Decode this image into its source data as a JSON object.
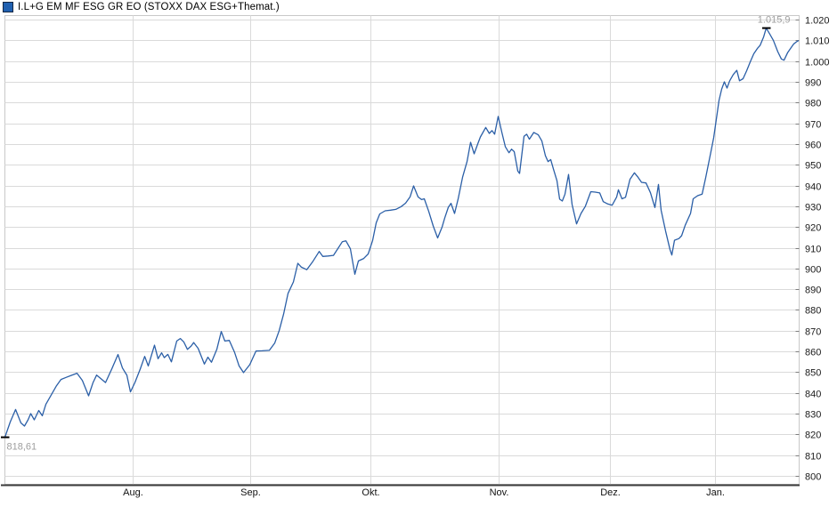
{
  "header": {
    "title": "I.L+G EM MF ESG GR EO (STOXX DAX ESG+Themat.)"
  },
  "chart_data": {
    "type": "line",
    "title": "I.L+G EM MF ESG GR EO (STOXX DAX ESG+Themat.)",
    "grid": true,
    "legend_position": "top-left",
    "colors": {
      "line": "#2b5fa7",
      "legend_fill": "#2060b0",
      "legend_border": "#132743",
      "grid": "#dadada",
      "border": "#c9c9c9",
      "axis": "#3c3c3c",
      "tick": "#7d7d7d",
      "tick_text": "#1a1a1a",
      "annotation_text": "#9e9e9e",
      "annotation_dash": "#000000"
    },
    "y_axis": {
      "min": 800,
      "max": 1020,
      "step": 10,
      "ticks": [
        {
          "v": 1020,
          "label": "1.020"
        },
        {
          "v": 1010,
          "label": "1.010"
        },
        {
          "v": 1000,
          "label": "1.000"
        },
        {
          "v": 990,
          "label": "990"
        },
        {
          "v": 980,
          "label": "980"
        },
        {
          "v": 970,
          "label": "970"
        },
        {
          "v": 960,
          "label": "960"
        },
        {
          "v": 950,
          "label": "950"
        },
        {
          "v": 940,
          "label": "940"
        },
        {
          "v": 930,
          "label": "930"
        },
        {
          "v": 920,
          "label": "920"
        },
        {
          "v": 910,
          "label": "910"
        },
        {
          "v": 900,
          "label": "900"
        },
        {
          "v": 890,
          "label": "890"
        },
        {
          "v": 880,
          "label": "880"
        },
        {
          "v": 870,
          "label": "870"
        },
        {
          "v": 860,
          "label": "860"
        },
        {
          "v": 850,
          "label": "850"
        },
        {
          "v": 840,
          "label": "840"
        },
        {
          "v": 830,
          "label": "830"
        },
        {
          "v": 820,
          "label": "820"
        },
        {
          "v": 810,
          "label": "810"
        },
        {
          "v": 800,
          "label": "800"
        }
      ]
    },
    "x_axis": {
      "ticks": [
        {
          "label": "Aug.",
          "f": 0.1613
        },
        {
          "label": "Sep.",
          "f": 0.3096
        },
        {
          "label": "Okt.",
          "f": 0.4611
        },
        {
          "label": "Nov.",
          "f": 0.6218
        },
        {
          "label": "Dez.",
          "f": 0.7621
        },
        {
          "label": "Jan.",
          "f": 0.8956
        }
      ]
    },
    "annotations": [
      {
        "id": "low",
        "label": "818,61",
        "f": 0.0,
        "value": 818.61,
        "position": "below-left"
      },
      {
        "id": "high",
        "label": "1.015,9",
        "f": 0.9596,
        "value": 1015.9,
        "position": "above-right"
      }
    ],
    "series": [
      {
        "name": "I.L+G EM MF ESG GR EO",
        "points": [
          [
            0.0,
            818.6
          ],
          [
            0.0067,
            826.0
          ],
          [
            0.0135,
            832.0
          ],
          [
            0.0202,
            825.5
          ],
          [
            0.0247,
            824.0
          ],
          [
            0.0292,
            827.0
          ],
          [
            0.0326,
            830.0
          ],
          [
            0.037,
            827.0
          ],
          [
            0.0427,
            831.5
          ],
          [
            0.0471,
            829.0
          ],
          [
            0.0516,
            834.5
          ],
          [
            0.0584,
            839.0
          ],
          [
            0.0651,
            843.5
          ],
          [
            0.0707,
            846.5
          ],
          [
            0.0774,
            847.5
          ],
          [
            0.0842,
            848.5
          ],
          [
            0.0909,
            849.5
          ],
          [
            0.0976,
            846.0
          ],
          [
            0.1055,
            838.6
          ],
          [
            0.1111,
            845.0
          ],
          [
            0.1156,
            848.6
          ],
          [
            0.1212,
            846.8
          ],
          [
            0.1268,
            845.0
          ],
          [
            0.1347,
            851.5
          ],
          [
            0.1425,
            858.5
          ],
          [
            0.1481,
            852.0
          ],
          [
            0.1538,
            848.5
          ],
          [
            0.1582,
            840.5
          ],
          [
            0.1639,
            845.0
          ],
          [
            0.1706,
            851.5
          ],
          [
            0.1762,
            857.6
          ],
          [
            0.1807,
            853.0
          ],
          [
            0.1886,
            863.0
          ],
          [
            0.193,
            856.5
          ],
          [
            0.1975,
            859.3
          ],
          [
            0.2009,
            857.0
          ],
          [
            0.2054,
            858.6
          ],
          [
            0.2099,
            855.0
          ],
          [
            0.2166,
            865.0
          ],
          [
            0.2211,
            866.2
          ],
          [
            0.2256,
            864.5
          ],
          [
            0.2301,
            861.0
          ],
          [
            0.2346,
            862.5
          ],
          [
            0.2379,
            864.3
          ],
          [
            0.2435,
            861.5
          ],
          [
            0.2514,
            853.9
          ],
          [
            0.2559,
            857.2
          ],
          [
            0.2604,
            854.8
          ],
          [
            0.2671,
            861.0
          ],
          [
            0.2727,
            869.6
          ],
          [
            0.2772,
            865.0
          ],
          [
            0.2828,
            865.3
          ],
          [
            0.2896,
            859.5
          ],
          [
            0.2952,
            853.0
          ],
          [
            0.3008,
            849.8
          ],
          [
            0.3086,
            853.6
          ],
          [
            0.3165,
            860.2
          ],
          [
            0.3244,
            860.3
          ],
          [
            0.3333,
            860.5
          ],
          [
            0.3401,
            864.0
          ],
          [
            0.3457,
            870.0
          ],
          [
            0.3513,
            878.0
          ],
          [
            0.3569,
            888.0
          ],
          [
            0.3636,
            893.5
          ],
          [
            0.3693,
            902.5
          ],
          [
            0.3737,
            900.6
          ],
          [
            0.3805,
            899.4
          ],
          [
            0.3883,
            903.5
          ],
          [
            0.3962,
            908.2
          ],
          [
            0.4007,
            905.8
          ],
          [
            0.4074,
            906.0
          ],
          [
            0.4141,
            906.3
          ],
          [
            0.4254,
            912.9
          ],
          [
            0.4299,
            913.3
          ],
          [
            0.4355,
            909.5
          ],
          [
            0.4411,
            897.2
          ],
          [
            0.4456,
            903.6
          ],
          [
            0.4523,
            904.8
          ],
          [
            0.4579,
            907.0
          ],
          [
            0.4635,
            913.5
          ],
          [
            0.468,
            922.0
          ],
          [
            0.4725,
            926.3
          ],
          [
            0.4792,
            927.8
          ],
          [
            0.486,
            928.1
          ],
          [
            0.4927,
            928.5
          ],
          [
            0.4994,
            929.8
          ],
          [
            0.5051,
            931.5
          ],
          [
            0.5107,
            934.5
          ],
          [
            0.5152,
            939.8
          ],
          [
            0.5208,
            934.5
          ],
          [
            0.5253,
            933.2
          ],
          [
            0.5286,
            933.6
          ],
          [
            0.5342,
            927.5
          ],
          [
            0.5398,
            920.5
          ],
          [
            0.5455,
            914.7
          ],
          [
            0.5511,
            920.0
          ],
          [
            0.5544,
            924.4
          ],
          [
            0.5589,
            929.5
          ],
          [
            0.5623,
            931.4
          ],
          [
            0.5668,
            926.5
          ],
          [
            0.5713,
            933.5
          ],
          [
            0.5769,
            944.0
          ],
          [
            0.5825,
            951.5
          ],
          [
            0.587,
            960.8
          ],
          [
            0.5915,
            955.3
          ],
          [
            0.596,
            960.0
          ],
          [
            0.5993,
            963.4
          ],
          [
            0.6061,
            968.0
          ],
          [
            0.6106,
            965.1
          ],
          [
            0.6139,
            966.5
          ],
          [
            0.6173,
            964.7
          ],
          [
            0.6218,
            973.3
          ],
          [
            0.6263,
            965.8
          ],
          [
            0.6308,
            958.7
          ],
          [
            0.6353,
            955.8
          ],
          [
            0.6386,
            957.5
          ],
          [
            0.642,
            956.3
          ],
          [
            0.6465,
            947.0
          ],
          [
            0.6487,
            945.8
          ],
          [
            0.6543,
            963.7
          ],
          [
            0.6577,
            964.7
          ],
          [
            0.6611,
            962.3
          ],
          [
            0.6667,
            965.6
          ],
          [
            0.6723,
            964.4
          ],
          [
            0.6768,
            961.5
          ],
          [
            0.6813,
            954.4
          ],
          [
            0.6846,
            951.5
          ],
          [
            0.688,
            952.5
          ],
          [
            0.6914,
            948.0
          ],
          [
            0.6958,
            942.3
          ],
          [
            0.6992,
            933.4
          ],
          [
            0.7026,
            932.5
          ],
          [
            0.7059,
            935.8
          ],
          [
            0.7104,
            945.3
          ],
          [
            0.7149,
            930.8
          ],
          [
            0.7205,
            921.5
          ],
          [
            0.7261,
            926.5
          ],
          [
            0.7317,
            930.0
          ],
          [
            0.7385,
            937.0
          ],
          [
            0.7441,
            936.8
          ],
          [
            0.7497,
            936.4
          ],
          [
            0.7542,
            932.2
          ],
          [
            0.7598,
            931.1
          ],
          [
            0.7654,
            930.5
          ],
          [
            0.771,
            934.4
          ],
          [
            0.7733,
            937.9
          ],
          [
            0.7778,
            933.6
          ],
          [
            0.7823,
            934.3
          ],
          [
            0.7879,
            943.0
          ],
          [
            0.7935,
            946.1
          ],
          [
            0.798,
            944.0
          ],
          [
            0.8025,
            941.5
          ],
          [
            0.8081,
            941.2
          ],
          [
            0.8137,
            936.5
          ],
          [
            0.8171,
            932.2
          ],
          [
            0.8193,
            929.4
          ],
          [
            0.8238,
            940.5
          ],
          [
            0.8272,
            928.0
          ],
          [
            0.8328,
            918.0
          ],
          [
            0.8384,
            909.0
          ],
          [
            0.8406,
            906.5
          ],
          [
            0.844,
            913.6
          ],
          [
            0.8496,
            914.4
          ],
          [
            0.853,
            915.8
          ],
          [
            0.8575,
            920.8
          ],
          [
            0.8608,
            923.7
          ],
          [
            0.8642,
            926.5
          ],
          [
            0.8676,
            933.6
          ],
          [
            0.8732,
            935.1
          ],
          [
            0.8788,
            935.8
          ],
          [
            0.8833,
            943.7
          ],
          [
            0.8866,
            950.1
          ],
          [
            0.89,
            956.5
          ],
          [
            0.8934,
            963.0
          ],
          [
            0.8967,
            972.0
          ],
          [
            0.9001,
            981.0
          ],
          [
            0.9035,
            986.5
          ],
          [
            0.9069,
            990.0
          ],
          [
            0.9102,
            987.0
          ],
          [
            0.9136,
            990.5
          ],
          [
            0.9181,
            993.5
          ],
          [
            0.9226,
            995.5
          ],
          [
            0.9259,
            990.5
          ],
          [
            0.9304,
            991.5
          ],
          [
            0.9349,
            995.3
          ],
          [
            0.9394,
            999.5
          ],
          [
            0.9439,
            1003.5
          ],
          [
            0.9484,
            1006.0
          ],
          [
            0.9518,
            1007.5
          ],
          [
            0.9562,
            1011.5
          ],
          [
            0.9596,
            1015.9
          ],
          [
            0.9641,
            1013.0
          ],
          [
            0.9686,
            1010.0
          ],
          [
            0.9742,
            1004.5
          ],
          [
            0.9787,
            1001.0
          ],
          [
            0.982,
            1000.4
          ],
          [
            0.9865,
            1004.0
          ],
          [
            0.991,
            1006.5
          ],
          [
            0.9944,
            1008.3
          ],
          [
            0.9978,
            1009.3
          ],
          [
            1.0,
            1009.8
          ]
        ]
      }
    ]
  }
}
